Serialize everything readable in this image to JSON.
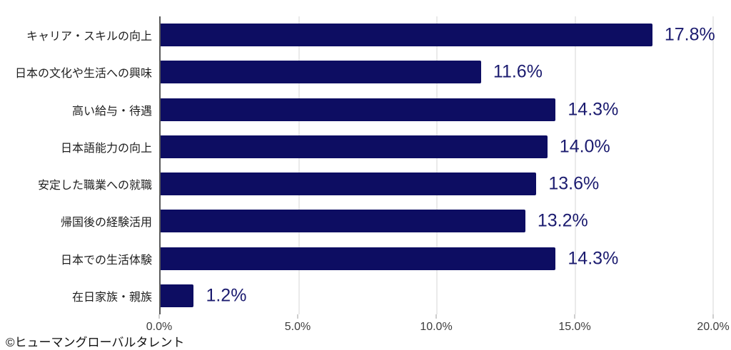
{
  "chart_data": {
    "type": "bar",
    "orientation": "horizontal",
    "title": "",
    "xlabel": "",
    "ylabel": "",
    "categories": [
      "キャリア・スキルの向上",
      "日本の文化や生活への興味",
      "高い給与・待遇",
      "日本語能力の向上",
      "安定した職業への就職",
      "帰国後の経験活用",
      "日本での生活体験",
      "在日家族・親族"
    ],
    "values": [
      17.8,
      11.6,
      14.3,
      14.0,
      13.6,
      13.2,
      14.3,
      1.2
    ],
    "value_labels": [
      "17.8%",
      "11.6%",
      "14.3%",
      "14.0%",
      "13.6%",
      "13.2%",
      "14.3%",
      "1.2%"
    ],
    "xlim": [
      0,
      20
    ],
    "x_tick_values": [
      0,
      5,
      10,
      15,
      20
    ],
    "x_tick_labels": [
      "0.0%",
      "5.0%",
      "10.0%",
      "15.0%",
      "20.0%"
    ],
    "grid": true,
    "legend": "none",
    "bar_color": "#0d0d62",
    "value_label_color": "#1b1b6f"
  },
  "footer": {
    "credit": "©ヒューマングローバルタレント"
  }
}
